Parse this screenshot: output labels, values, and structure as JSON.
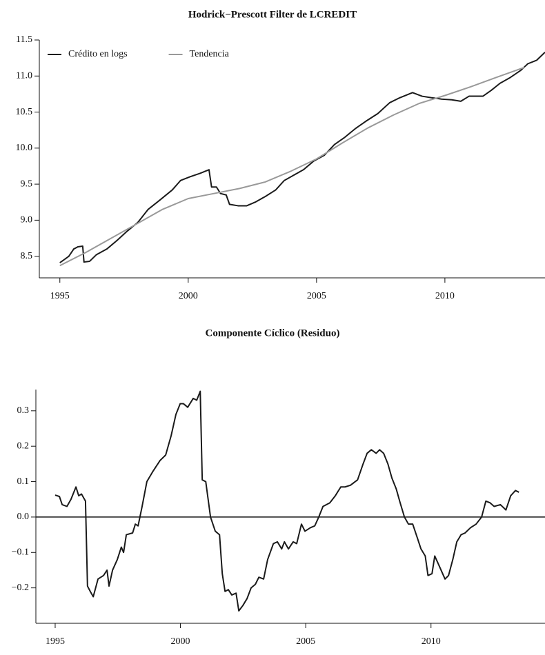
{
  "chart_data": [
    {
      "type": "line",
      "title": "Hodrick−Prescott Filter de LCREDIT",
      "legend": "top-left",
      "xlim": [
        1994.2,
        2013.9
      ],
      "xticks": [
        1995,
        2000,
        2005,
        2010
      ],
      "ylim": [
        8.2,
        11.5
      ],
      "yticks": [
        {
          "value": 8.5,
          "label": "8.5"
        },
        {
          "value": 9,
          "label": "9.0"
        },
        {
          "value": 9.5,
          "label": "9.5"
        },
        {
          "value": 10,
          "label": "10.0"
        },
        {
          "value": 10.5,
          "label": "10.5"
        },
        {
          "value": 11,
          "label": "11.0"
        },
        {
          "value": 11.5,
          "label": "11.5"
        }
      ],
      "series": [
        {
          "name": "Crédito en logs",
          "color": "#1a1a1a",
          "x": [
            1995.0,
            1995.16,
            1995.35,
            1995.54,
            1995.7,
            1995.89,
            1995.94,
            1996.16,
            1996.42,
            1996.83,
            1997.23,
            1997.63,
            1998.04,
            1998.44,
            1998.9,
            1999.38,
            1999.7,
            2000.05,
            2000.46,
            2000.81,
            2000.91,
            2001.1,
            2001.26,
            2001.48,
            2001.61,
            2001.94,
            2002.28,
            2002.61,
            2003.01,
            2003.41,
            2003.74,
            2004.09,
            2004.49,
            2004.89,
            2005.3,
            2005.7,
            2006.1,
            2006.51,
            2006.91,
            2007.39,
            2007.85,
            2008.25,
            2008.74,
            2009.11,
            2009.46,
            2009.87,
            2010.27,
            2010.62,
            2010.94,
            2011.48,
            2011.8,
            2012.15,
            2012.55,
            2012.96,
            2013.23,
            2013.58,
            2013.9
          ],
          "values": [
            8.41,
            8.45,
            8.5,
            8.6,
            8.63,
            8.64,
            8.42,
            8.43,
            8.52,
            8.6,
            8.72,
            8.85,
            8.97,
            9.15,
            9.28,
            9.42,
            9.55,
            9.6,
            9.65,
            9.7,
            9.46,
            9.46,
            9.37,
            9.35,
            9.22,
            9.2,
            9.2,
            9.25,
            9.33,
            9.42,
            9.55,
            9.62,
            9.7,
            9.82,
            9.9,
            10.05,
            10.15,
            10.27,
            10.37,
            10.48,
            10.63,
            10.7,
            10.77,
            10.72,
            10.7,
            10.68,
            10.67,
            10.65,
            10.72,
            10.72,
            10.8,
            10.9,
            10.98,
            11.08,
            11.17,
            11.22,
            11.33
          ]
        },
        {
          "name": "Tendencia",
          "color": "#999999",
          "x": [
            1995,
            1996,
            1997,
            1998,
            1999,
            2000,
            2001,
            2002,
            2003,
            2004,
            2005,
            2006,
            2007,
            2008,
            2009,
            2010,
            2011,
            2012,
            2013.1
          ],
          "values": [
            8.37,
            8.55,
            8.75,
            8.95,
            9.15,
            9.3,
            9.37,
            9.44,
            9.53,
            9.68,
            9.85,
            10.07,
            10.28,
            10.46,
            10.62,
            10.73,
            10.85,
            10.98,
            11.12
          ]
        }
      ]
    },
    {
      "type": "line",
      "title": "Componente Cíclico (Residuo)",
      "xlim": [
        1994.23,
        2014.55
      ],
      "xticks": [
        1995,
        2000,
        2005,
        2010
      ],
      "ylim": [
        -0.3,
        0.36
      ],
      "yticks": [
        {
          "value": -0.2,
          "label": "−0.2"
        },
        {
          "value": -0.1,
          "label": "−0.1"
        },
        {
          "value": 0,
          "label": "0.0"
        },
        0.1,
        0.2,
        0.3
      ],
      "hline": 0,
      "series": [
        {
          "color": "#1a1a1a",
          "x": [
            1995.0,
            1995.17,
            1995.28,
            1995.47,
            1995.63,
            1995.83,
            1995.94,
            1996.05,
            1996.21,
            1996.29,
            1996.4,
            1996.52,
            1996.71,
            1996.93,
            1997.07,
            1997.15,
            1997.29,
            1997.48,
            1997.64,
            1997.73,
            1997.84,
            1998.09,
            1998.2,
            1998.31,
            1998.47,
            1998.66,
            1998.91,
            1999.19,
            1999.41,
            1999.63,
            1999.82,
            1999.99,
            2000.12,
            2000.29,
            2000.51,
            2000.65,
            2000.79,
            2000.87,
            2001.01,
            2001.2,
            2001.39,
            2001.56,
            2001.67,
            2001.78,
            2001.91,
            2002.05,
            2002.22,
            2002.33,
            2002.49,
            2002.66,
            2002.82,
            2002.99,
            2003.13,
            2003.32,
            2003.48,
            2003.71,
            2003.87,
            2004.04,
            2004.15,
            2004.31,
            2004.5,
            2004.64,
            2004.83,
            2004.97,
            2005.19,
            2005.36,
            2005.52,
            2005.69,
            2005.96,
            2006.18,
            2006.4,
            2006.57,
            2006.79,
            2007.07,
            2007.29,
            2007.45,
            2007.62,
            2007.81,
            2007.95,
            2008.11,
            2008.28,
            2008.44,
            2008.61,
            2008.77,
            2008.94,
            2009.1,
            2009.27,
            2009.46,
            2009.6,
            2009.77,
            2009.88,
            2010.04,
            2010.15,
            2010.34,
            2010.56,
            2010.7,
            2010.87,
            2011.03,
            2011.2,
            2011.36,
            2011.58,
            2011.8,
            2012.02,
            2012.19,
            2012.36,
            2012.52,
            2012.77,
            2012.99,
            2013.18,
            2013.37,
            2013.51
          ],
          "values": [
            0.062,
            0.058,
            0.035,
            0.03,
            0.05,
            0.085,
            0.06,
            0.065,
            0.045,
            -0.195,
            -0.21,
            -0.225,
            -0.175,
            -0.165,
            -0.15,
            -0.195,
            -0.15,
            -0.12,
            -0.085,
            -0.1,
            -0.05,
            -0.045,
            -0.02,
            -0.025,
            0.03,
            0.1,
            0.13,
            0.16,
            0.175,
            0.23,
            0.29,
            0.32,
            0.32,
            0.31,
            0.335,
            0.33,
            0.355,
            0.105,
            0.1,
            0.0,
            -0.04,
            -0.05,
            -0.16,
            -0.21,
            -0.205,
            -0.22,
            -0.215,
            -0.265,
            -0.25,
            -0.23,
            -0.2,
            -0.19,
            -0.17,
            -0.175,
            -0.12,
            -0.075,
            -0.07,
            -0.09,
            -0.07,
            -0.09,
            -0.07,
            -0.075,
            -0.02,
            -0.04,
            -0.03,
            -0.025,
            0.0,
            0.03,
            0.04,
            0.06,
            0.085,
            0.085,
            0.09,
            0.105,
            0.15,
            0.18,
            0.19,
            0.18,
            0.19,
            0.18,
            0.15,
            0.11,
            0.08,
            0.04,
            0.0,
            -0.02,
            -0.02,
            -0.06,
            -0.09,
            -0.11,
            -0.165,
            -0.16,
            -0.11,
            -0.14,
            -0.175,
            -0.165,
            -0.12,
            -0.07,
            -0.05,
            -0.045,
            -0.03,
            -0.02,
            0.0,
            0.045,
            0.04,
            0.03,
            0.035,
            0.02,
            0.06,
            0.075,
            0.07
          ]
        }
      ]
    }
  ]
}
